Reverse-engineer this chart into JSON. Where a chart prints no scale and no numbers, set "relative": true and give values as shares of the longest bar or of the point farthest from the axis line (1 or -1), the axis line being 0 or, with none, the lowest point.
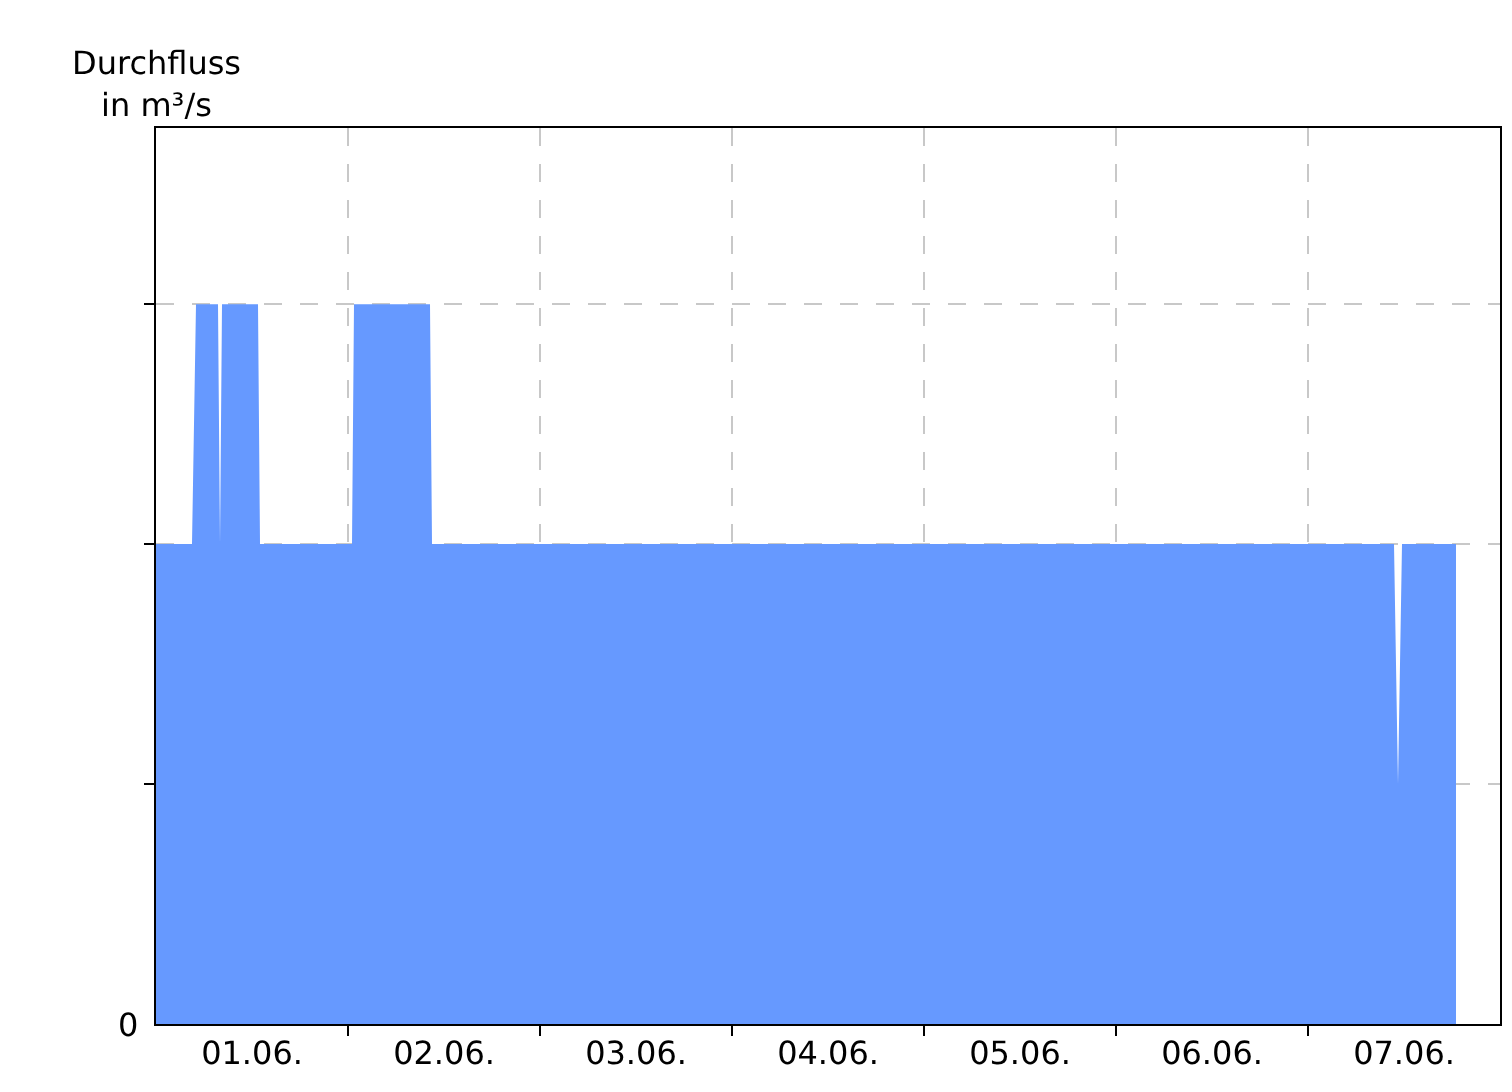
{
  "chart_data": {
    "type": "area",
    "annotations": [
      "Durchfluss\nin m³/s",
      "0"
    ],
    "relative": true,
    "grid": true,
    "legend": false,
    "x": [
      "--06-01T00:00",
      "--06-01T04:30",
      "--06-01T05:00",
      "--06-01T07:45",
      "--06-01T08:00",
      "--06-01T08:15",
      "--06-01T12:45",
      "--06-01T13:00",
      "--06-02T00:30",
      "--06-02T00:45",
      "--06-02T10:15",
      "--06-02T10:30",
      "--06-07T10:45",
      "--06-07T11:15",
      "--06-07T11:45",
      "--06-07T18:30"
    ],
    "series": [
      {
        "color": "#6699ff",
        "values": [
          0.667,
          0.667,
          1,
          1,
          0.667,
          1,
          1,
          0.667,
          0.667,
          1,
          1,
          0.667,
          0.667,
          0.333,
          0.667,
          0.667
        ]
      }
    ],
    "xlim": [
      "--06-01T00:00",
      "--06-08T00:00"
    ],
    "xticks": [
      {
        "value": "--06-01T12:00",
        "label": "01.06."
      },
      {
        "value": "--06-02T12:00",
        "label": "02.06."
      },
      {
        "value": "--06-03T12:00",
        "label": "03.06."
      },
      {
        "value": "--06-04T12:00",
        "label": "04.06."
      },
      {
        "value": "--06-05T12:00",
        "label": "05.06."
      },
      {
        "value": "--06-06T12:00",
        "label": "06.06."
      },
      {
        "value": "--06-07T12:00",
        "label": "07.06."
      },
      {
        "value": "--06-02T00:00",
        "label": null
      },
      {
        "value": "--06-03T00:00",
        "label": null
      },
      {
        "value": "--06-04T00:00",
        "label": null
      },
      {
        "value": "--06-05T00:00",
        "label": null
      },
      {
        "value": "--06-06T00:00",
        "label": null
      },
      {
        "value": "--06-07T00:00",
        "label": null
      }
    ]
  }
}
